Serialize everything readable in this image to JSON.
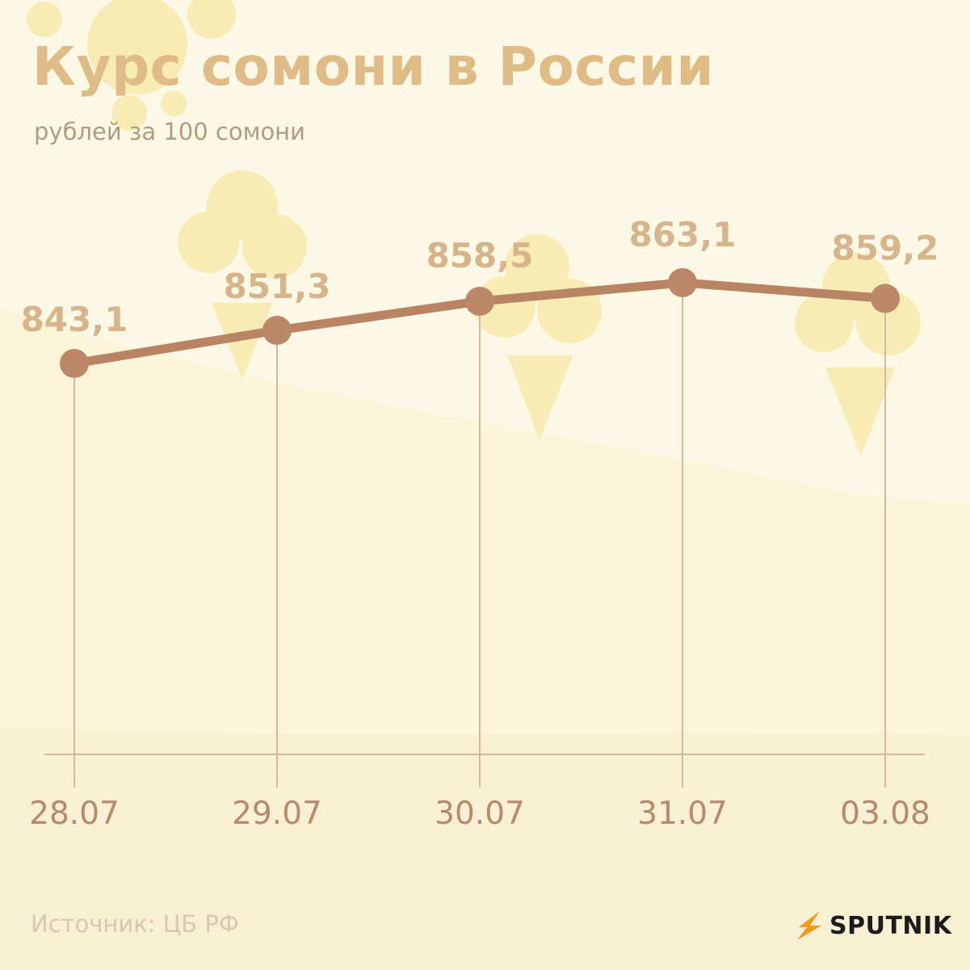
{
  "header": {
    "title": "Курс сомони в России",
    "subtitle": "рублей за 100 сомони"
  },
  "footer": {
    "source": "Источник: ЦБ РФ",
    "brand": "SPUTNIK"
  },
  "colors": {
    "line": "#b88464",
    "marker": "#bc8867",
    "value_label": "#d7b48a",
    "axis_label": "#b8896b",
    "guide_line": "#d6b89d",
    "decor": "#f8ebb4"
  },
  "icons": [
    "sun-icon",
    "ice-cream-icon",
    "sputnik-logo-icon"
  ],
  "chart_data": {
    "type": "line",
    "title": "Курс сомони в России",
    "subtitle": "рублей за 100 сомони",
    "categories": [
      "28.07",
      "29.07",
      "30.07",
      "31.07",
      "03.08"
    ],
    "series": [
      {
        "values": [
          843.1,
          851.3,
          858.5,
          863.1,
          859.2
        ],
        "labels": [
          "843,1",
          "851,3",
          "858,5",
          "863,1",
          "859,2"
        ]
      }
    ],
    "grid": false,
    "legend": "none"
  }
}
